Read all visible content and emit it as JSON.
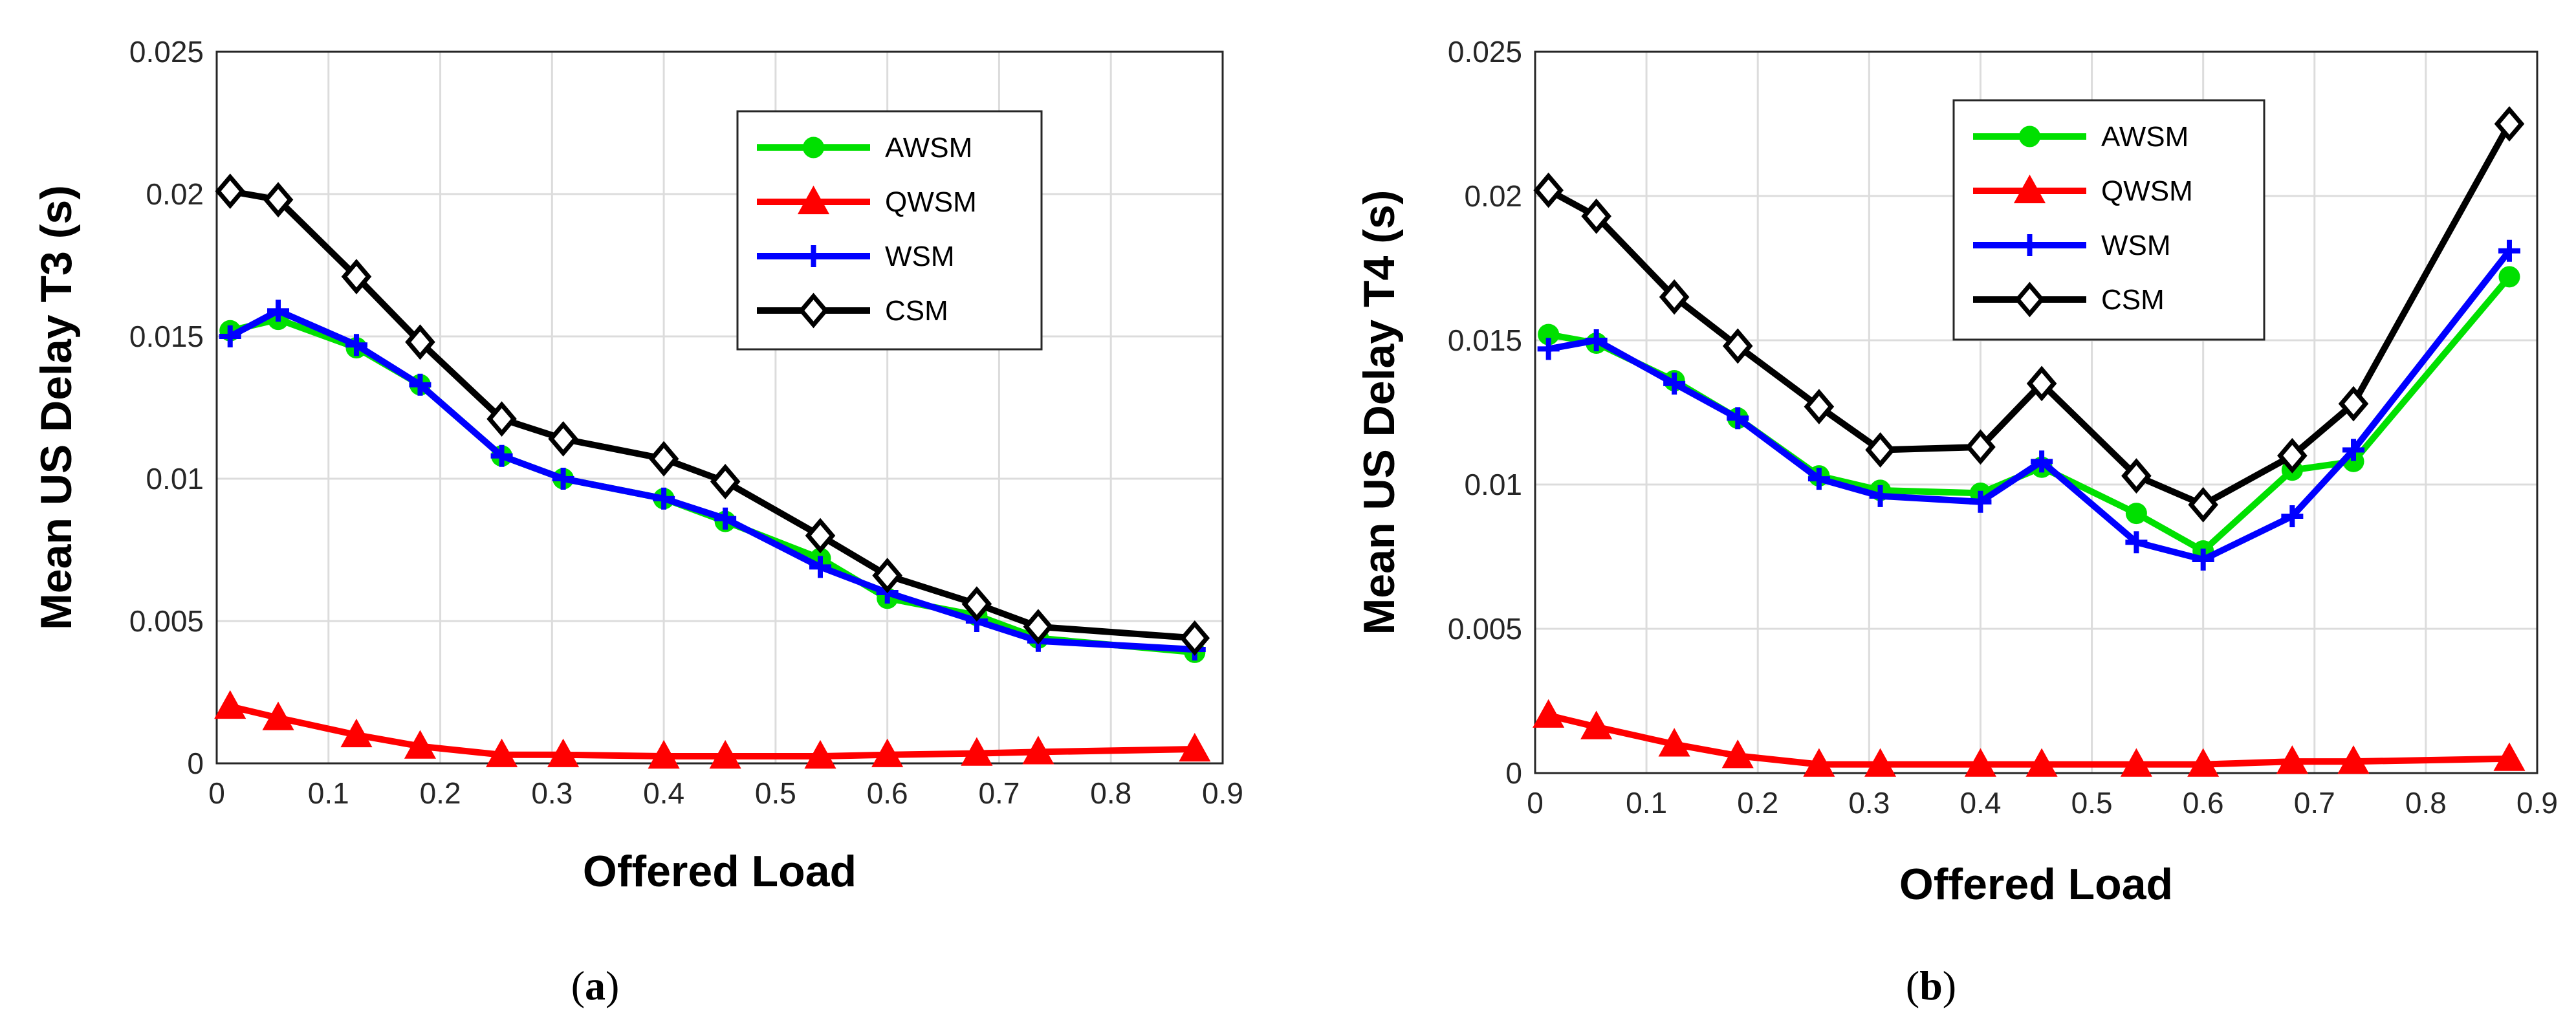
{
  "chart_data": [
    {
      "type": "line",
      "panel": "a",
      "xlabel": "Offered Load",
      "ylabel": "Mean US Delay T3 (s)",
      "xlim": [
        0,
        0.9
      ],
      "ylim": [
        0,
        0.025
      ],
      "xticks": [
        "0",
        "0.1",
        "0.2",
        "0.3",
        "0.4",
        "0.5",
        "0.6",
        "0.7",
        "0.8",
        "0.9"
      ],
      "yticks": [
        "0",
        "0.005",
        "0.01",
        "0.015",
        "0.02",
        "0.025"
      ],
      "grid": true,
      "legend_position": "top-right",
      "x": [
        0.012,
        0.055,
        0.125,
        0.182,
        0.255,
        0.31,
        0.4,
        0.455,
        0.54,
        0.6,
        0.68,
        0.735,
        0.875
      ],
      "series": [
        {
          "name": "AWSM",
          "color": "#00e000",
          "marker": "circle",
          "values": [
            0.0152,
            0.0156,
            0.0146,
            0.0133,
            0.0108,
            0.01,
            0.0093,
            0.0085,
            0.0072,
            0.0058,
            0.0052,
            0.0044,
            0.0039
          ]
        },
        {
          "name": "QWSM",
          "color": "#ff0000",
          "marker": "triangle",
          "values": [
            0.002,
            0.0016,
            0.001,
            0.0006,
            0.0003,
            0.0003,
            0.00025,
            0.00025,
            0.00025,
            0.0003,
            0.00035,
            0.0004,
            0.0005
          ]
        },
        {
          "name": "WSM",
          "color": "#0000ff",
          "marker": "plus",
          "values": [
            0.015,
            0.0159,
            0.0147,
            0.0133,
            0.0108,
            0.01,
            0.0093,
            0.0086,
            0.0069,
            0.006,
            0.005,
            0.0043,
            0.004
          ]
        },
        {
          "name": "CSM",
          "color": "#000000",
          "marker": "diamond",
          "values": [
            0.0201,
            0.0198,
            0.0171,
            0.0148,
            0.0121,
            0.0114,
            0.0107,
            0.0099,
            0.008,
            0.0066,
            0.0056,
            0.0048,
            0.0044
          ]
        }
      ]
    },
    {
      "type": "line",
      "panel": "b",
      "xlabel": "Offered Load",
      "ylabel": "Mean US Delay T4 (s)",
      "xlim": [
        0,
        0.9
      ],
      "ylim": [
        0,
        0.025
      ],
      "xticks": [
        "0",
        "0.1",
        "0.2",
        "0.3",
        "0.4",
        "0.5",
        "0.6",
        "0.7",
        "0.8",
        "0.9"
      ],
      "yticks": [
        "0",
        "0.005",
        "0.01",
        "0.015",
        "0.02",
        "0.025"
      ],
      "grid": true,
      "legend_position": "top-right",
      "x": [
        0.012,
        0.055,
        0.125,
        0.182,
        0.255,
        0.31,
        0.4,
        0.455,
        0.54,
        0.6,
        0.68,
        0.735,
        0.875
      ],
      "series": [
        {
          "name": "AWSM",
          "color": "#00e000",
          "marker": "circle",
          "values": [
            0.0152,
            0.0149,
            0.0136,
            0.0123,
            0.0103,
            0.0098,
            0.0097,
            0.0106,
            0.009,
            0.0077,
            0.0105,
            0.0108,
            0.0172
          ]
        },
        {
          "name": "QWSM",
          "color": "#ff0000",
          "marker": "triangle",
          "values": [
            0.002,
            0.0016,
            0.001,
            0.0006,
            0.0003,
            0.0003,
            0.0003,
            0.0003,
            0.0003,
            0.0003,
            0.0004,
            0.0004,
            0.0005
          ]
        },
        {
          "name": "WSM",
          "color": "#0000ff",
          "marker": "plus",
          "values": [
            0.0147,
            0.015,
            0.0135,
            0.0123,
            0.0102,
            0.0096,
            0.0094,
            0.0108,
            0.008,
            0.0074,
            0.0089,
            0.0112,
            0.0181
          ]
        },
        {
          "name": "CSM",
          "color": "#000000",
          "marker": "diamond",
          "values": [
            0.0202,
            0.0193,
            0.0165,
            0.0148,
            0.0127,
            0.0112,
            0.0113,
            0.0135,
            0.0103,
            0.0093,
            0.011,
            0.0128,
            0.0225
          ]
        }
      ]
    }
  ],
  "captions": [
    {
      "open": "(",
      "letter": "a",
      "close": ")"
    },
    {
      "open": "(",
      "letter": "b",
      "close": ")"
    }
  ]
}
